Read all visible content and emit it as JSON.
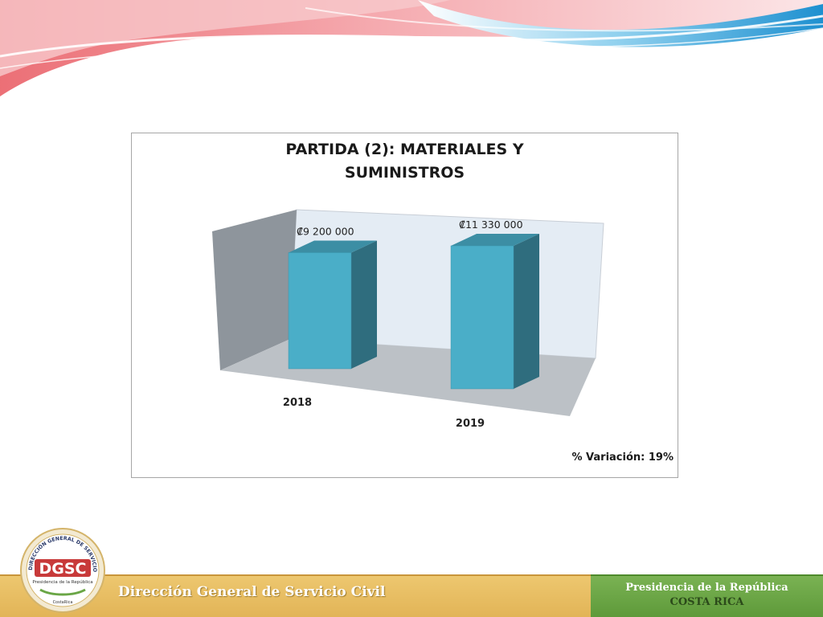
{
  "chart_data": {
    "type": "bar",
    "title": "PARTIDA (2): MATERIALES Y SUMINISTROS",
    "title_lines": [
      "PARTIDA (2): MATERIALES Y",
      "SUMINISTROS"
    ],
    "categories": [
      "2018",
      "2019"
    ],
    "values": [
      9200000,
      11330000
    ],
    "data_labels": [
      "₡9 200 000",
      "₡11 330 000"
    ],
    "style": "3d-column",
    "grid": false,
    "legend": "none",
    "colors": {
      "bar_front": "#4aaec8",
      "bar_side": "#2f6d7e",
      "bar_top": "#3c8ea4"
    }
  },
  "annotation": "% Variación: 19%",
  "footer": {
    "organization": "Dirección General de Servicio Civil",
    "presidency_line1": "Presidencia de la República",
    "presidency_line2": "COSTA RICA"
  },
  "logo": {
    "acronym": "DGSC",
    "ring_text": "DIRECCIÓN GENERAL DE SERVICIO CIVIL",
    "sub_text": "Presidencia de la República",
    "country": "CostaRica"
  },
  "colors": {
    "banner_red": "#e8565e",
    "banner_blue": "#3aa7db",
    "footer_gold": "#e6bb60",
    "footer_green": "#6aa646"
  }
}
